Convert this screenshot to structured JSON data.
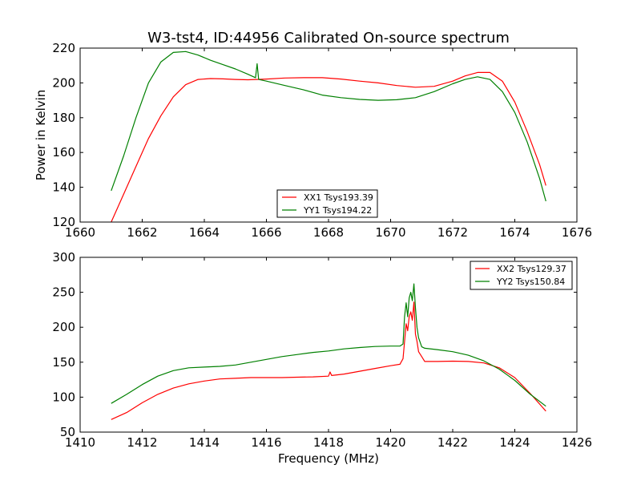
{
  "figure": {
    "title": "W3-tst4, ID:44956 Calibrated On-source spectrum",
    "ylabel": "Power in Kelvin",
    "xlabel": "Frequency (MHz)"
  },
  "chart_data": [
    {
      "type": "line",
      "xlim": [
        1660,
        1676
      ],
      "ylim": [
        120,
        220
      ],
      "xticks": [
        1660,
        1662,
        1664,
        1666,
        1668,
        1670,
        1672,
        1674,
        1676
      ],
      "yticks": [
        120,
        140,
        160,
        180,
        200,
        220
      ],
      "legend": "bottom-center",
      "series": [
        {
          "name": "XX1 Tsys193.39",
          "color": "#ff0000",
          "x": [
            1661.0,
            1661.4,
            1661.8,
            1662.2,
            1662.6,
            1663.0,
            1663.4,
            1663.8,
            1664.2,
            1664.6,
            1665.0,
            1665.4,
            1665.7,
            1666.0,
            1666.6,
            1667.2,
            1667.8,
            1668.4,
            1669.0,
            1669.6,
            1670.2,
            1670.8,
            1671.4,
            1672.0,
            1672.4,
            1672.8,
            1673.2,
            1673.6,
            1674.0,
            1674.4,
            1674.8,
            1675.0
          ],
          "y": [
            120,
            136,
            152,
            168,
            181,
            192,
            199,
            202,
            202.5,
            202.3,
            202,
            201.8,
            202,
            202.2,
            202.8,
            203,
            203,
            202.2,
            201,
            200,
            198.5,
            197.5,
            198,
            201,
            204,
            206,
            206,
            201,
            189,
            172,
            153,
            141
          ]
        },
        {
          "name": "YY1 Tsys194.22",
          "color": "#008000",
          "x": [
            1661.0,
            1661.4,
            1661.8,
            1662.2,
            1662.6,
            1663.0,
            1663.4,
            1663.8,
            1664.2,
            1664.6,
            1665.0,
            1665.4,
            1665.65,
            1665.7,
            1665.75,
            1666.0,
            1666.6,
            1667.2,
            1667.8,
            1668.4,
            1669.0,
            1669.6,
            1670.2,
            1670.8,
            1671.4,
            1672.0,
            1672.4,
            1672.8,
            1673.2,
            1673.6,
            1674.0,
            1674.4,
            1674.8,
            1675.0
          ],
          "y": [
            138,
            158,
            180,
            200,
            212,
            217.5,
            218,
            216,
            213,
            210.5,
            208,
            205,
            203,
            211,
            202,
            201,
            198.5,
            196,
            193,
            191.5,
            190.5,
            190,
            190.3,
            191.5,
            195,
            199.5,
            202,
            203.5,
            202,
            195,
            183,
            166,
            145,
            132
          ]
        }
      ]
    },
    {
      "type": "line",
      "xlim": [
        1410,
        1426
      ],
      "ylim": [
        50,
        300
      ],
      "xticks": [
        1410,
        1412,
        1414,
        1416,
        1418,
        1420,
        1422,
        1424,
        1426
      ],
      "yticks": [
        50,
        100,
        150,
        200,
        250,
        300
      ],
      "legend": "top-right",
      "series": [
        {
          "name": "XX2 Tsys129.37",
          "color": "#ff0000",
          "x": [
            1411.0,
            1411.5,
            1412.0,
            1412.5,
            1413.0,
            1413.5,
            1414.0,
            1414.5,
            1415.0,
            1415.5,
            1416.0,
            1416.5,
            1417.0,
            1417.5,
            1418.0,
            1418.05,
            1418.1,
            1418.5,
            1419.0,
            1419.5,
            1420.0,
            1420.3,
            1420.4,
            1420.5,
            1420.55,
            1420.6,
            1420.65,
            1420.7,
            1420.75,
            1420.8,
            1420.85,
            1420.9,
            1421.0,
            1421.1,
            1421.5,
            1422.0,
            1422.5,
            1423.0,
            1423.5,
            1424.0,
            1424.5,
            1425.0
          ],
          "y": [
            68,
            78,
            92,
            104,
            113,
            119,
            123,
            126,
            127,
            128,
            128,
            128,
            128.5,
            129,
            130,
            136,
            131,
            133,
            137,
            141,
            145,
            147,
            155,
            205,
            195,
            215,
            222,
            210,
            236,
            190,
            180,
            165,
            158,
            151,
            151,
            151.5,
            151,
            149,
            142,
            128,
            105,
            80
          ]
        },
        {
          "name": "YY2 Tsys150.84",
          "color": "#008000",
          "x": [
            1411.0,
            1411.5,
            1412.0,
            1412.5,
            1413.0,
            1413.5,
            1414.0,
            1414.5,
            1415.0,
            1415.5,
            1416.0,
            1416.5,
            1417.0,
            1417.5,
            1418.0,
            1418.5,
            1419.0,
            1419.5,
            1420.0,
            1420.3,
            1420.4,
            1420.45,
            1420.5,
            1420.55,
            1420.6,
            1420.65,
            1420.7,
            1420.75,
            1420.8,
            1420.85,
            1420.9,
            1421.0,
            1421.1,
            1421.5,
            1422.0,
            1422.5,
            1423.0,
            1423.5,
            1424.0,
            1424.5,
            1425.0
          ],
          "y": [
            91,
            104,
            118,
            130,
            138,
            142,
            143,
            144,
            146,
            150,
            154,
            158,
            161,
            164,
            166,
            169,
            171,
            172.5,
            173,
            173,
            176,
            215,
            235,
            215,
            242,
            250,
            238,
            262,
            228,
            200,
            185,
            172,
            170,
            168,
            165,
            160,
            152,
            140,
            124,
            104,
            87
          ]
        }
      ]
    }
  ]
}
